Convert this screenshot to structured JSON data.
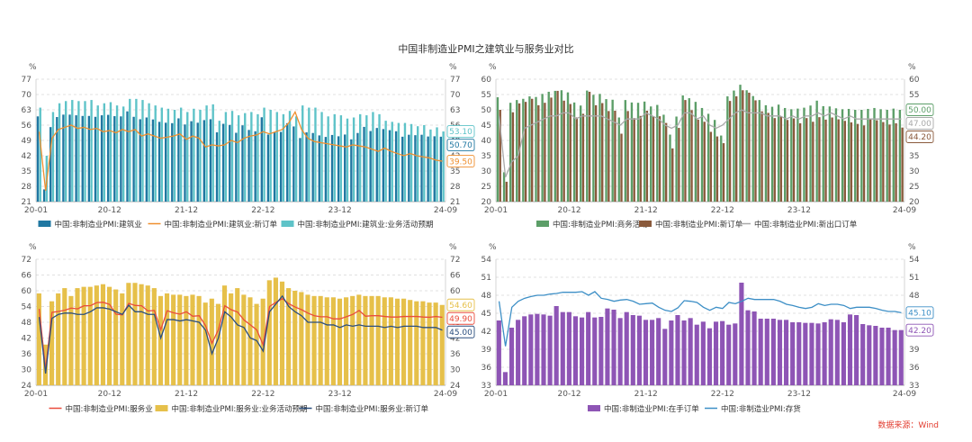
{
  "title": "中国非制造业PMI之建筑业与服务业对比",
  "source": "数据来源：Wind",
  "colors": {
    "build_pmi": "#1f77a1",
    "build_new": "#ef8f2e",
    "build_exp": "#5ec3c8",
    "biz_act": "#5c9e68",
    "biz_new": "#8a5a3c",
    "biz_export": "#a9a9a9",
    "svc_pmi": "#ea4c3c",
    "svc_exp": "#e6c04a",
    "svc_new": "#2b4e7e",
    "backlog": "#8e55b5",
    "inventory": "#3d8fc6"
  },
  "chart_data": [
    {
      "type": "bar+line",
      "unit_left": "%",
      "unit_right": "%",
      "ylim": [
        21,
        77
      ],
      "yticks": [
        21,
        28,
        35,
        42,
        49,
        56,
        63,
        70,
        77
      ],
      "x_ticks": [
        "20-01",
        "20-12",
        "21-12",
        "22-12",
        "23-12",
        "24-09"
      ],
      "legend": [
        "中国:非制造业PMI:建筑业",
        "中国:非制造业PMI:建筑业:新订单",
        "中国:非制造业PMI:建筑业:业务活动预期"
      ],
      "end_labels": [
        {
          "text": "53.10",
          "value": 53.1,
          "color": "#5ec3c8"
        },
        {
          "text": "50.70",
          "value": 50.7,
          "color": "#1f77a1"
        },
        {
          "text": "39.50",
          "value": 39.5,
          "color": "#ef8f2e"
        }
      ],
      "series": [
        {
          "name": "中国:非制造业PMI:建筑业",
          "kind": "bar",
          "color": "#1f77a1",
          "values": [
            60.0,
            26.6,
            55.1,
            59.7,
            60.8,
            60.8,
            60.5,
            60.2,
            60.2,
            59.8,
            60.5,
            60.7,
            60.1,
            60.0,
            62.3,
            59.8,
            58.7,
            59.5,
            58.6,
            57.5,
            57.1,
            56.9,
            59.1,
            56.3,
            57.8,
            57.1,
            58.3,
            58.7,
            52.7,
            56.6,
            56.1,
            52.5,
            55.9,
            53.8,
            53.2,
            59.6,
            51.7,
            52.7,
            52.9,
            56.9,
            55.4,
            50.1,
            52.7,
            52.4,
            51.3,
            50.6,
            51.5,
            50.9,
            51.7,
            49.5,
            52.4,
            55.2,
            53.3,
            54.7,
            54.2,
            53.7,
            53.2,
            50.7,
            51.6,
            51.4,
            51.6,
            50.8,
            50.9,
            50.7
          ]
        },
        {
          "name": "中国:非制造业PMI:建筑业:新订单",
          "kind": "line",
          "color": "#ef8f2e",
          "values": [
            53.0,
            26.0,
            50.0,
            54.0,
            55.0,
            56.0,
            54.5,
            55.0,
            54.0,
            54.5,
            53.0,
            53.5,
            52.5,
            54.0,
            53.0,
            54.0,
            51.0,
            52.0,
            51.0,
            50.0,
            50.5,
            51.0,
            52.0,
            49.5,
            51.0,
            50.0,
            46.0,
            47.0,
            46.5,
            47.0,
            49.0,
            48.0,
            50.0,
            51.0,
            51.5,
            53.0,
            52.0,
            53.0,
            54.0,
            57.0,
            62.0,
            54.0,
            50.0,
            48.5,
            48.0,
            47.5,
            47.0,
            46.5,
            46.0,
            47.0,
            46.5,
            46.0,
            45.0,
            44.0,
            45.5,
            44.0,
            43.0,
            42.0,
            43.0,
            42.0,
            41.5,
            41.0,
            40.0,
            39.5
          ]
        },
        {
          "name": "中国:非制造业PMI:建筑业:业务活动预期",
          "kind": "bar",
          "color": "#5ec3c8",
          "values": [
            64.0,
            42.0,
            62.0,
            66.0,
            67.0,
            67.5,
            67.0,
            67.0,
            67.5,
            65.0,
            66.0,
            66.5,
            65.0,
            64.5,
            68.0,
            68.0,
            67.5,
            66.0,
            65.0,
            64.0,
            63.5,
            63.0,
            64.0,
            62.0,
            63.5,
            63.0,
            65.0,
            65.5,
            58.0,
            62.0,
            62.5,
            60.5,
            61.5,
            62.0,
            61.0,
            64.0,
            63.0,
            62.0,
            61.0,
            62.5,
            60.0,
            65.0,
            64.0,
            64.0,
            62.0,
            60.0,
            61.0,
            60.5,
            59.0,
            59.5,
            61.0,
            60.5,
            62.0,
            61.0,
            58.0,
            57.5,
            57.0,
            57.0,
            56.5,
            55.5,
            56.0,
            54.0,
            55.0,
            53.1
          ]
        }
      ]
    },
    {
      "type": "bar+line",
      "unit_left": "%",
      "unit_right": "%",
      "ylim": [
        20,
        60
      ],
      "yticks": [
        20,
        25,
        30,
        35,
        40,
        45,
        50,
        55,
        60
      ],
      "x_ticks": [
        "20-01",
        "20-12",
        "21-12",
        "22-12",
        "23-12",
        "24-09"
      ],
      "legend": [
        "中国:非制造业PMI:商务活动",
        "中国:非制造业PMI:新订单",
        "中国:非制造业PMI:新出口订单"
      ],
      "end_labels": [
        {
          "text": "50.00",
          "value": 50.0,
          "color": "#5c9e68"
        },
        {
          "text": "47.00",
          "value": 47.0,
          "color": "#a9a9a9"
        },
        {
          "text": "44.20",
          "value": 44.2,
          "color": "#8a5a3c"
        }
      ],
      "series": [
        {
          "name": "中国:非制造业PMI:商务活动",
          "kind": "bar",
          "color": "#5c9e68",
          "values": [
            54.1,
            29.6,
            52.3,
            53.2,
            53.6,
            54.4,
            54.2,
            55.2,
            55.9,
            56.2,
            56.4,
            55.7,
            52.4,
            51.4,
            56.3,
            54.9,
            55.2,
            53.5,
            53.3,
            47.5,
            53.2,
            52.4,
            52.3,
            52.7,
            51.1,
            51.6,
            48.4,
            41.9,
            47.8,
            54.7,
            53.8,
            52.6,
            50.6,
            48.7,
            46.7,
            41.6,
            54.4,
            56.3,
            58.2,
            56.4,
            54.5,
            53.2,
            51.5,
            51.0,
            51.7,
            50.6,
            50.2,
            50.4,
            50.7,
            51.4,
            53.0,
            51.2,
            51.1,
            50.5,
            50.2,
            50.3,
            50.0,
            50.0,
            50.3,
            50.6,
            50.2,
            50.0,
            50.4,
            50.0
          ]
        },
        {
          "name": "中国:非制造业PMI:新订单",
          "kind": "bar",
          "color": "#8a5a3c",
          "values": [
            50.0,
            26.5,
            49.2,
            52.1,
            52.6,
            53.6,
            51.5,
            52.3,
            54.0,
            56.2,
            53.0,
            51.9,
            47.5,
            48.7,
            55.9,
            51.5,
            52.2,
            49.6,
            49.7,
            42.2,
            49.6,
            47.3,
            48.0,
            49.7,
            47.8,
            47.9,
            45.7,
            37.4,
            44.1,
            53.2,
            49.9,
            46.8,
            46.1,
            42.8,
            41.3,
            39.1,
            52.9,
            54.4,
            56.4,
            55.6,
            53.1,
            49.5,
            49.0,
            47.3,
            47.8,
            46.7,
            47.2,
            45.6,
            47.3,
            46.1,
            47.6,
            46.8,
            47.5,
            46.9,
            46.4,
            45.9,
            45.4,
            44.9,
            46.9,
            46.6,
            46.0,
            45.2,
            45.6,
            44.2
          ]
        },
        {
          "name": "中国:非制造业PMI:新出口订单",
          "kind": "line",
          "color": "#a9a9a9",
          "values": [
            48.0,
            28.0,
            33.0,
            35.0,
            44.0,
            45.0,
            46.0,
            47.0,
            48.0,
            48.0,
            49.0,
            49.0,
            47.0,
            48.0,
            48.0,
            48.0,
            48.0,
            47.0,
            46.0,
            45.0,
            47.0,
            47.0,
            47.0,
            49.0,
            48.0,
            47.0,
            45.0,
            44.0,
            45.0,
            49.0,
            49.0,
            47.0,
            48.0,
            45.0,
            44.0,
            45.0,
            47.0,
            49.0,
            50.0,
            49.0,
            49.0,
            49.0,
            48.0,
            48.0,
            48.0,
            47.0,
            48.0,
            47.0,
            48.0,
            48.0,
            49.0,
            48.0,
            49.0,
            48.0,
            47.0,
            48.0,
            47.0,
            47.0,
            47.0,
            47.0,
            47.0,
            47.0,
            47.0,
            47.0
          ]
        }
      ]
    },
    {
      "type": "bar+line",
      "unit_left": "%",
      "unit_right": "%",
      "ylim": [
        24,
        72
      ],
      "yticks": [
        24,
        30,
        36,
        42,
        48,
        54,
        60,
        66,
        72
      ],
      "x_ticks": [
        "20-01",
        "20-12",
        "21-12",
        "22-12",
        "23-12",
        "24-09"
      ],
      "legend": [
        "中国:非制造业PMI:服务业",
        "中国:非制造业PMI:服务业:业务活动预期",
        "中国:非制造业PMI:服务业:新订单"
      ],
      "end_labels": [
        {
          "text": "54.60",
          "value": 54.6,
          "color": "#e6c04a"
        },
        {
          "text": "49.90",
          "value": 49.9,
          "color": "#ea4c3c"
        },
        {
          "text": "45.00",
          "value": 45.0,
          "color": "#2b4e7e"
        }
      ],
      "series": [
        {
          "name": "中国:非制造业PMI:服务业",
          "kind": "line",
          "color": "#ea4c3c",
          "values": [
            53.1,
            30.1,
            51.8,
            52.1,
            52.6,
            53.4,
            53.1,
            54.3,
            54.3,
            55.5,
            55.6,
            54.8,
            51.1,
            50.8,
            55.2,
            54.4,
            54.3,
            52.3,
            52.5,
            45.2,
            52.4,
            51.6,
            51.1,
            52.0,
            50.3,
            50.5,
            46.7,
            40.0,
            45.1,
            54.3,
            52.8,
            51.9,
            48.9,
            47.0,
            45.1,
            39.4,
            54.0,
            55.6,
            57.0,
            55.1,
            53.8,
            52.8,
            51.5,
            50.5,
            50.1,
            50.1,
            49.3,
            49.3,
            50.1,
            51.0,
            52.5,
            50.3,
            50.5,
            50.5,
            50.2,
            50.0,
            50.0,
            50.2,
            50.2,
            50.2,
            50.0,
            49.9,
            50.2,
            49.9
          ]
        },
        {
          "name": "中国:非制造业PMI:服务业:业务活动预期",
          "kind": "bar",
          "color": "#e6c04a",
          "values": [
            59.0,
            39.5,
            56.0,
            59.0,
            61.0,
            58.0,
            61.0,
            61.5,
            61.5,
            62.0,
            62.5,
            61.5,
            60.5,
            59.0,
            63.0,
            63.0,
            62.5,
            62.0,
            61.0,
            58.0,
            59.0,
            58.5,
            58.5,
            58.0,
            58.5,
            58.0,
            55.5,
            57.0,
            55.0,
            62.0,
            59.0,
            61.0,
            58.5,
            57.5,
            55.0,
            57.0,
            64.0,
            65.0,
            63.5,
            61.0,
            60.0,
            59.5,
            58.5,
            58.0,
            58.0,
            57.5,
            57.5,
            57.0,
            57.5,
            58.0,
            58.5,
            58.0,
            58.0,
            58.0,
            57.5,
            57.5,
            57.0,
            57.0,
            56.5,
            56.0,
            56.0,
            55.5,
            55.5,
            54.6
          ]
        },
        {
          "name": "中国:非制造业PMI:服务业:新订单",
          "kind": "line",
          "color": "#2b4e7e",
          "values": [
            50.0,
            28.5,
            49.5,
            51.0,
            51.5,
            51.5,
            51.0,
            51.0,
            52.0,
            53.5,
            53.5,
            53.0,
            52.0,
            51.0,
            54.5,
            52.0,
            52.0,
            51.0,
            51.0,
            42.0,
            49.0,
            49.0,
            48.5,
            49.0,
            48.5,
            48.0,
            45.0,
            36.0,
            42.0,
            52.0,
            50.0,
            47.0,
            46.0,
            42.0,
            41.0,
            37.0,
            52.0,
            55.0,
            58.0,
            54.0,
            52.0,
            50.5,
            48.0,
            48.0,
            48.0,
            47.0,
            47.0,
            46.0,
            47.0,
            46.5,
            47.0,
            46.5,
            46.5,
            46.5,
            46.0,
            46.5,
            46.0,
            46.5,
            46.5,
            46.5,
            46.0,
            46.0,
            46.0,
            45.0
          ]
        }
      ]
    },
    {
      "type": "bar+line",
      "unit_left": "%",
      "unit_right": "%",
      "ylim": [
        33,
        54
      ],
      "yticks": [
        33,
        36,
        39,
        42,
        45,
        48,
        51,
        54
      ],
      "x_ticks": [
        "20-01",
        "20-12",
        "21-12",
        "22-12",
        "23-12",
        "24-09"
      ],
      "legend": [
        "中国:非制造业PMI:在手订单",
        "中国:非制造业PMI:存货"
      ],
      "end_labels": [
        {
          "text": "45.10",
          "value": 45.1,
          "color": "#3d8fc6"
        },
        {
          "text": "42.20",
          "value": 42.2,
          "color": "#8e55b5"
        }
      ],
      "series": [
        {
          "name": "中国:非制造业PMI:在手订单",
          "kind": "bar",
          "color": "#8e55b5",
          "values": [
            43.8,
            35.2,
            42.6,
            43.9,
            44.5,
            44.8,
            44.9,
            44.8,
            44.6,
            46.2,
            45.2,
            45.2,
            44.5,
            44.3,
            45.2,
            44.3,
            44.4,
            45.8,
            45.6,
            44.2,
            45.2,
            44.7,
            44.6,
            43.9,
            43.9,
            44.2,
            42.4,
            43.8,
            44.7,
            43.8,
            44.2,
            43.1,
            43.6,
            42.5,
            43.6,
            43.7,
            43.1,
            43.3,
            50.1,
            45.5,
            45.3,
            44.1,
            44.1,
            44.1,
            43.9,
            43.9,
            43.5,
            43.5,
            43.4,
            43.4,
            43.3,
            43.5,
            44.0,
            43.9,
            43.5,
            44.8,
            44.7,
            43.2,
            43.0,
            42.9,
            42.6,
            42.6,
            42.2,
            42.2
          ]
        },
        {
          "name": "中国:非制造业PMI:存货",
          "kind": "line",
          "color": "#3d8fc6",
          "values": [
            47.0,
            39.5,
            46.0,
            47.0,
            47.5,
            47.8,
            48.0,
            48.0,
            48.2,
            48.3,
            48.5,
            48.5,
            48.5,
            48.6,
            48.0,
            48.6,
            47.5,
            47.3,
            47.0,
            47.2,
            47.3,
            47.0,
            46.5,
            46.6,
            46.7,
            46.0,
            45.5,
            45.3,
            45.9,
            47.1,
            47.0,
            46.8,
            46.0,
            45.5,
            46.0,
            45.8,
            46.8,
            46.6,
            47.0,
            47.5,
            47.3,
            47.3,
            47.3,
            47.3,
            47.0,
            46.5,
            46.3,
            46.0,
            45.8,
            46.0,
            46.6,
            46.3,
            46.5,
            46.5,
            46.3,
            45.8,
            46.0,
            46.0,
            46.0,
            45.8,
            45.5,
            45.3,
            45.3,
            45.1
          ]
        }
      ]
    }
  ]
}
